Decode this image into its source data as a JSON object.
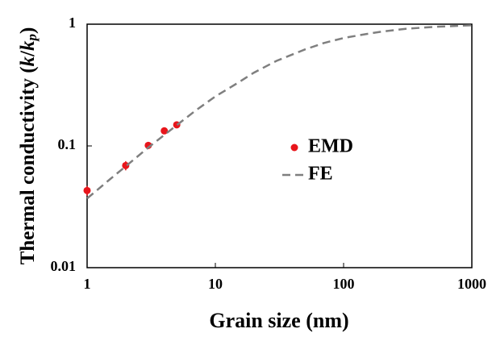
{
  "chart_data": {
    "type": "scatter-line",
    "xlabel": "Grain size (nm)",
    "ylabel_parts": [
      "Thermal conductivity (",
      "k",
      "/",
      "k",
      "p",
      ")"
    ],
    "xlog": true,
    "ylog": true,
    "xlim": [
      1,
      1000
    ],
    "ylim": [
      0.01,
      1
    ],
    "xticks": [
      1,
      10,
      100,
      1000
    ],
    "yticks": [
      0.01,
      0.1,
      1
    ],
    "legend": "center right",
    "series": [
      {
        "name": "EMD",
        "kind": "points",
        "color": "#e8151b",
        "x": [
          1,
          2,
          3,
          4,
          5
        ],
        "values": [
          0.043,
          0.069,
          0.101,
          0.133,
          0.149
        ],
        "errors": [
          0.004,
          0.006,
          0.007,
          0.005,
          0.005
        ]
      },
      {
        "name": "FE",
        "kind": "dashed-line",
        "color": "#7f7f7f",
        "x": [
          1,
          1.5,
          2,
          3,
          5,
          7,
          10,
          15,
          20,
          30,
          50,
          70,
          100,
          150,
          200,
          300,
          500,
          700,
          1000
        ],
        "values": [
          0.037,
          0.053,
          0.068,
          0.097,
          0.148,
          0.195,
          0.255,
          0.33,
          0.4,
          0.5,
          0.62,
          0.7,
          0.77,
          0.83,
          0.87,
          0.915,
          0.95,
          0.965,
          0.98
        ]
      }
    ]
  }
}
